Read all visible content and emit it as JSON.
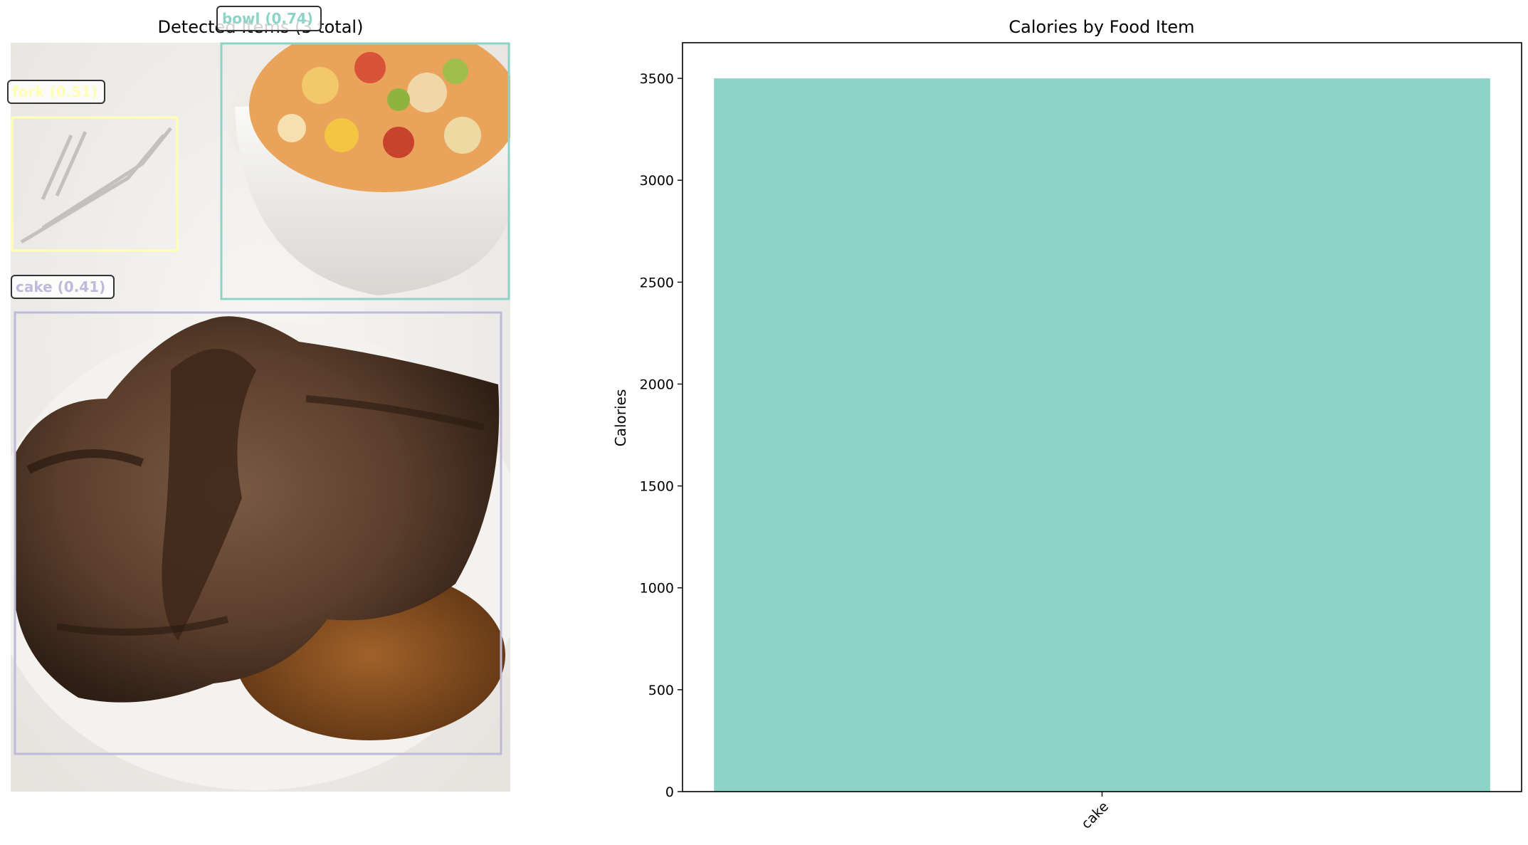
{
  "left_panel": {
    "title": "Detected Items (3 total)",
    "detections": [
      {
        "label": "bowl (0.74)",
        "color": "#8dd3c7"
      },
      {
        "label": "fork (0.51)",
        "color": "#ffffb3"
      },
      {
        "label": "cake (0.41)",
        "color": "#bebada"
      }
    ]
  },
  "chart_data": {
    "type": "bar",
    "title": "Calories by Food Item",
    "xlabel": "",
    "ylabel": "Calories",
    "categories": [
      "cake"
    ],
    "values": [
      3500
    ],
    "ylim": [
      0,
      3675
    ],
    "yticks": [
      0,
      500,
      1000,
      1500,
      2000,
      2500,
      3000,
      3500
    ],
    "bar_color": "#8dd3c7",
    "grid": false,
    "legend": "none"
  }
}
